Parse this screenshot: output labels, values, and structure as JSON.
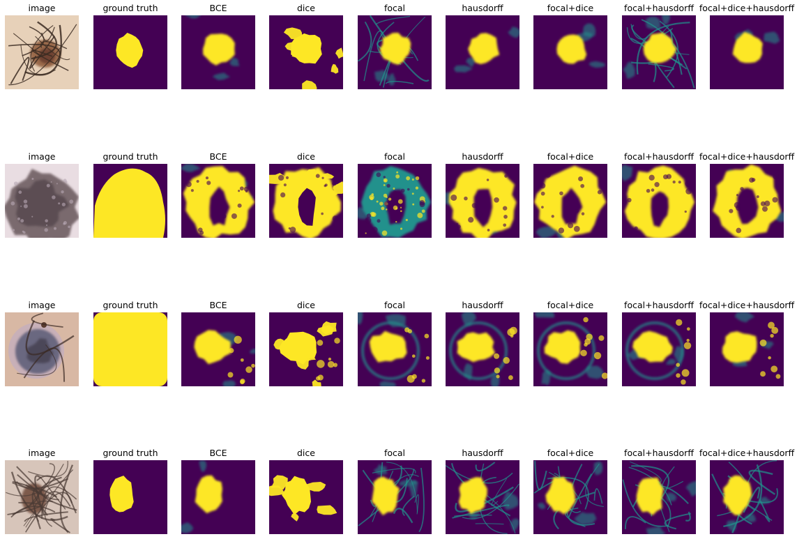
{
  "figure": {
    "colormap": "viridis",
    "colors": {
      "background": "#ffffff",
      "viridis_low": "#440154",
      "viridis_mid": "#21918c",
      "viridis_high": "#fde725",
      "skin_light": "#ead5be",
      "lesion_brown": "#7a5540"
    },
    "column_titles": [
      "image",
      "ground truth",
      "BCE",
      "dice",
      "focal",
      "hausdorff",
      "focal+dice",
      "focal+hausdorff",
      "focal+dice+hausdorff"
    ],
    "rows": [
      {
        "titles": [
          "image",
          "ground truth",
          "BCE",
          "dice",
          "focal",
          "hausdorff",
          "focal+dice",
          "focal+hausdorff",
          "focal+dice+hausdorff"
        ],
        "photo": "dermoscopy photo with light skin, brown lesion and dark hairs",
        "kinds": [
          "photo-hairs",
          "mask-small",
          "pred-small",
          "pred-small-blotchy",
          "pred-small-streaks",
          "pred-small",
          "pred-small",
          "pred-small-streaks",
          "pred-small"
        ]
      },
      {
        "titles": [
          "image",
          "ground truth",
          "BCE",
          "dice",
          "focal",
          "hausdorff",
          "focal+dice",
          "focal+hausdorff",
          "focal+dice+hausdorff"
        ],
        "photo": "dermoscopy photo with large grey-brown lesion filling frame",
        "kinds": [
          "photo-large",
          "mask-large",
          "pred-arch",
          "pred-arch-blotchy",
          "pred-arch-noisy",
          "pred-arch",
          "pred-arch",
          "pred-arch",
          "pred-arch"
        ]
      },
      {
        "titles": [
          "image",
          "ground truth",
          "BCE",
          "dice",
          "focal",
          "hausdorff",
          "focal+dice",
          "focal+hausdorff",
          "focal+dice+hausdorff"
        ],
        "photo": "dermoscopy photo with circular bluish lesion and ring",
        "kinds": [
          "photo-ring",
          "mask-full",
          "pred-center",
          "pred-center-blotchy",
          "pred-center-ring",
          "pred-center-ring",
          "pred-center-ring",
          "pred-center-ring",
          "pred-center"
        ]
      },
      {
        "titles": [
          "image",
          "ground truth",
          "BCE",
          "dice",
          "focal",
          "hausdorff",
          "focal+dice",
          "focal+hausdorff",
          "focal+dice+hausdorff"
        ],
        "photo": "dermoscopy photo with many hairs over small lesion",
        "kinds": [
          "photo-hairy",
          "mask-small-tall",
          "pred-tall",
          "pred-tall-blotchy",
          "pred-tall-streaks",
          "pred-tall-streaks",
          "pred-tall-streaks",
          "pred-tall-streaks",
          "pred-tall-streaks"
        ]
      }
    ]
  }
}
